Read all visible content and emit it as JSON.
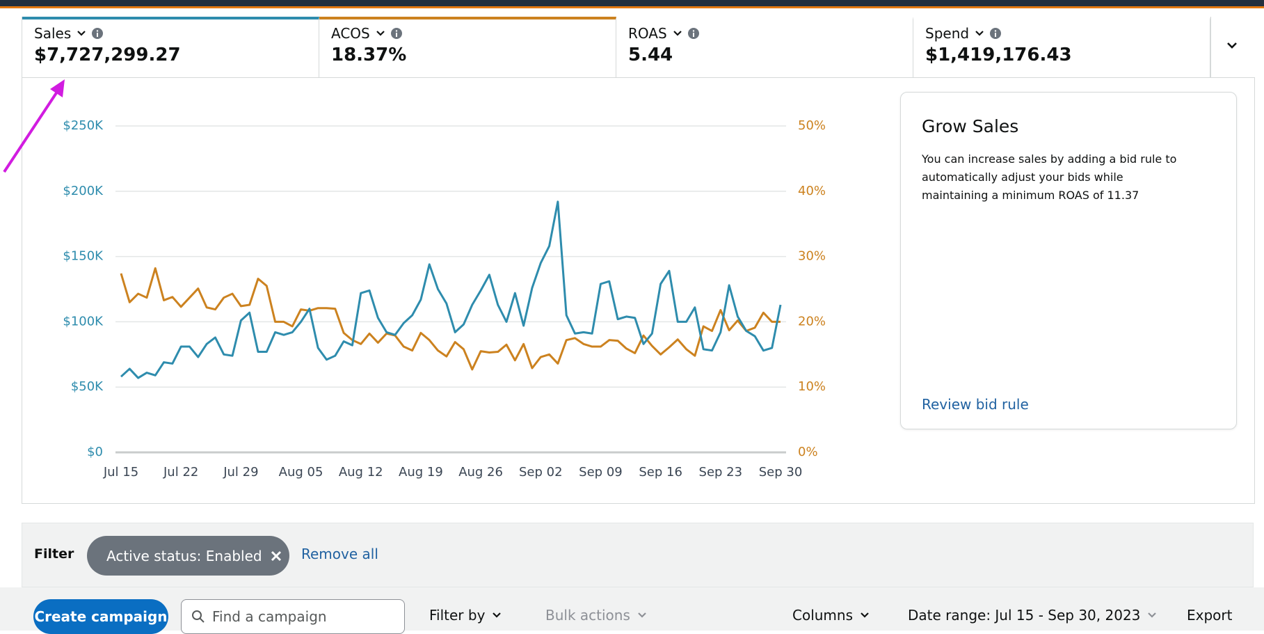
{
  "metrics": [
    {
      "label": "Sales",
      "value": "$7,727,299.27"
    },
    {
      "label": "ACOS",
      "value": "18.37%"
    },
    {
      "label": "ROAS",
      "value": "5.44"
    },
    {
      "label": "Spend",
      "value": "$1,419,176.43"
    }
  ],
  "chart_data": {
    "type": "line",
    "categories": [
      "Jul 15",
      null,
      null,
      null,
      null,
      null,
      null,
      "Jul 22",
      null,
      null,
      null,
      null,
      null,
      null,
      "Jul 29",
      null,
      null,
      null,
      null,
      null,
      null,
      "Aug 05",
      null,
      null,
      null,
      null,
      null,
      null,
      "Aug 12",
      null,
      null,
      null,
      null,
      null,
      null,
      "Aug 19",
      null,
      null,
      null,
      null,
      null,
      null,
      "Aug 26",
      null,
      null,
      null,
      null,
      null,
      null,
      "Sep 02",
      null,
      null,
      null,
      null,
      null,
      null,
      "Sep 09",
      null,
      null,
      null,
      null,
      null,
      null,
      "Sep 16",
      null,
      null,
      null,
      null,
      null,
      null,
      "Sep 23",
      null,
      null,
      null,
      null,
      null,
      null,
      "Sep 30"
    ],
    "series": [
      {
        "color": "#2e8cad",
        "values": [
          58000,
          64000,
          57000,
          61000,
          59000,
          69000,
          68000,
          81000,
          81000,
          73000,
          83000,
          88000,
          75000,
          74000,
          101000,
          107000,
          77000,
          77000,
          92000,
          90000,
          92000,
          100000,
          110000,
          80000,
          71000,
          74000,
          85000,
          82000,
          122000,
          124000,
          103000,
          92000,
          90000,
          99000,
          105000,
          117000,
          144000,
          125000,
          114000,
          92000,
          98000,
          113000,
          124000,
          136000,
          113000,
          100000,
          122000,
          97000,
          126000,
          145000,
          158000,
          192000,
          105000,
          91000,
          92000,
          91000,
          129000,
          131000,
          102000,
          104000,
          103000,
          83000,
          91000,
          129000,
          139000,
          100000,
          100000,
          111000,
          79000,
          78000,
          92000,
          128000,
          104000,
          93000,
          89000,
          78000,
          80000,
          113000
        ]
      },
      {
        "color": "#cc821f",
        "axis": "y2",
        "values": [
          27.4,
          23,
          24.3,
          23.7,
          28.2,
          23.3,
          23.8,
          22.3,
          23.7,
          25.1,
          22.2,
          21.9,
          23.7,
          24.3,
          22.4,
          22.6,
          26.6,
          25.5,
          20,
          20,
          19.3,
          21.9,
          21.7,
          22.1,
          22.1,
          22,
          18.3,
          17.2,
          16.6,
          18.2,
          16.8,
          18.2,
          17.9,
          16.2,
          15.6,
          18.3,
          17.2,
          15.6,
          14.7,
          16.9,
          15.8,
          12.7,
          15.5,
          15.3,
          15.4,
          16.5,
          14.1,
          16.6,
          12.9,
          14.6,
          15,
          13.6,
          17.2,
          17.5,
          16.6,
          16.2,
          16.2,
          17.2,
          17.1,
          15.9,
          15.2,
          17.9,
          16.3,
          15,
          16.1,
          17.3,
          15.8,
          14.8,
          19.3,
          18.6,
          21.8,
          18.7,
          20.2,
          18.6,
          19.1,
          21.4,
          20,
          20
        ]
      }
    ],
    "ylim": [
      0,
      250000
    ],
    "yticks": [
      {
        "value": 0,
        "label": "$0"
      },
      {
        "value": 50000,
        "label": "$50K"
      },
      {
        "value": 100000,
        "label": "$100K"
      },
      {
        "value": 150000,
        "label": "$150K"
      },
      {
        "value": 200000,
        "label": "$200K"
      },
      {
        "value": 250000,
        "label": "$250K"
      }
    ],
    "y2lim": [
      0,
      50
    ],
    "y2ticks": [
      {
        "value": 0,
        "label": "0%"
      },
      {
        "value": 10,
        "label": "10%"
      },
      {
        "value": 20,
        "label": "20%"
      },
      {
        "value": 30,
        "label": "30%"
      },
      {
        "value": 40,
        "label": "40%"
      },
      {
        "value": 50,
        "label": "50%"
      }
    ],
    "grid": true
  },
  "recommendation": {
    "title": "Grow Sales",
    "text": "You can increase sales by adding a bid rule to automatically adjust your bids while maintaining a minimum ROAS of 11.37",
    "link": "Review bid rule"
  },
  "filter": {
    "label": "Filter",
    "chip": "Active status: Enabled",
    "remove": "Remove all"
  },
  "toolbar": {
    "create": "Create campaign",
    "search_placeholder": "Find a campaign",
    "filter_by": "Filter by",
    "bulk_actions": "Bulk actions",
    "columns": "Columns",
    "date_range": "Date range: Jul 15 - Sep 30, 2023",
    "export": "Export"
  }
}
